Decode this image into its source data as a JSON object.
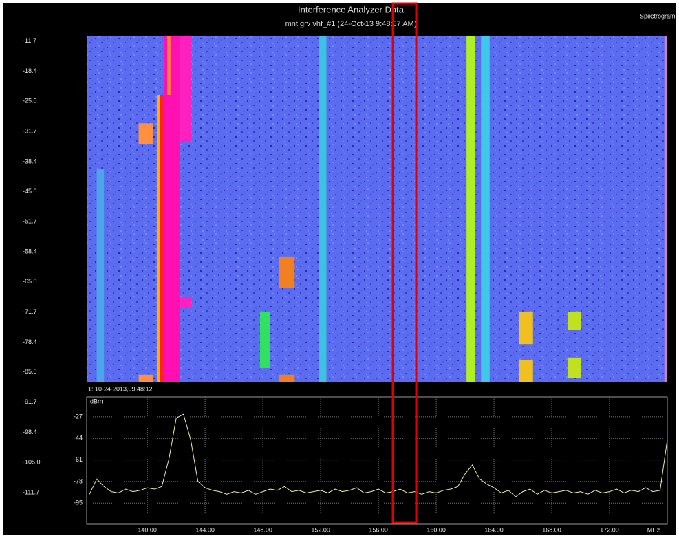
{
  "chart_data": [
    {
      "type": "spectrogram",
      "title": "Interference Analyzer Data",
      "subtitle": "mnt grv vhf_#1 (24-Oct-13 9:48:57 AM)",
      "view_label": "Spectrogram",
      "background": "#5b6cf0",
      "xlim": [
        135.8,
        176
      ],
      "ylim": [
        -118.7,
        -10.5
      ],
      "yticks": [
        -11.7,
        -18.4,
        {
          "value": -25,
          "label": "-25.0"
        },
        -31.7,
        -38.4,
        {
          "value": -45,
          "label": "-45.0"
        },
        -51.7,
        -58.4,
        {
          "value": -65,
          "label": "-65.0"
        },
        -71.7,
        -78.4,
        {
          "value": -85,
          "label": "-85.0"
        },
        -91.7,
        -98.4,
        {
          "value": -105,
          "label": "-105.0"
        },
        -111.7
      ],
      "features": [
        {
          "x": [
            136.5,
            137.0
          ],
          "t": [
            -40,
            -87.3
          ],
          "color": "#4aa6e8"
        },
        {
          "x": [
            151.9,
            152.4
          ],
          "t": [
            -10.5,
            -87.3
          ],
          "color": "#40c0e0"
        },
        {
          "x": [
            163.1,
            163.7
          ],
          "t": [
            -10.5,
            -87.3
          ],
          "color": "#40c8e8"
        },
        {
          "x": [
            162.1,
            162.7
          ],
          "t": [
            -10.5,
            -87.3
          ],
          "color": "#b0f020"
        },
        {
          "x": [
            140.66,
            140.85
          ],
          "t": [
            -23.6,
            -87.3
          ],
          "color": "#ffb000"
        },
        {
          "x": [
            140.85,
            141.13
          ],
          "t": [
            -23.6,
            -87.3
          ],
          "color": "#ff2020"
        },
        {
          "x": [
            141.13,
            142.28
          ],
          "t": [
            -10.5,
            -87.3
          ],
          "color": "#ff10b0"
        },
        {
          "x": [
            141.37,
            141.6
          ],
          "t": [
            -10.5,
            -23.6
          ],
          "color": "#ff8040"
        },
        {
          "x": [
            142.28,
            143.04
          ],
          "t": [
            -10.5,
            -33.9
          ],
          "color": "#ff20c0"
        },
        {
          "x": [
            142.28,
            143.04
          ],
          "t": [
            -68.4,
            -70.8
          ],
          "color": "#ff20c0"
        },
        {
          "x": [
            139.4,
            140.37
          ],
          "t": [
            -29.9,
            -34.5
          ],
          "color": "#ff9040"
        },
        {
          "x": [
            139.4,
            140.37
          ],
          "t": [
            -85.6,
            -87.3
          ],
          "color": "#ff9040"
        },
        {
          "x": [
            149.1,
            150.2
          ],
          "t": [
            -59.4,
            -66.3
          ],
          "color": "#f08020"
        },
        {
          "x": [
            149.1,
            150.2
          ],
          "t": [
            -85.6,
            -87.3
          ],
          "color": "#f08020"
        },
        {
          "x": [
            147.8,
            148.5
          ],
          "t": [
            -71.6,
            -84.1
          ],
          "color": "#30e060"
        },
        {
          "x": [
            165.75,
            166.7
          ],
          "t": [
            -71.6,
            -78.8
          ],
          "color": "#f0c020"
        },
        {
          "x": [
            165.75,
            166.7
          ],
          "t": [
            -82.4,
            -87.3
          ],
          "color": "#f0c020"
        },
        {
          "x": [
            169.1,
            170.0
          ],
          "t": [
            -71.6,
            -75.7
          ],
          "color": "#c0e020"
        },
        {
          "x": [
            169.1,
            170.0
          ],
          "t": [
            -81.8,
            -86.4
          ],
          "color": "#c0e020"
        },
        {
          "x": [
            175.8,
            176.0
          ],
          "t": [
            -10.5,
            -87.3
          ],
          "color": "#d080c0"
        }
      ]
    },
    {
      "type": "line",
      "timestamp": "1: 10-24-2013,09:48:12",
      "y_label": "dBm",
      "x_label": "MHz",
      "color": "#f0f0a8",
      "grid": true,
      "xlim": [
        135.8,
        176
      ],
      "ylim": [
        -111.7,
        -11.3
      ],
      "xticks": [
        {
          "value": 140,
          "label": "140.00"
        },
        {
          "value": 144,
          "label": "144.00"
        },
        {
          "value": 148,
          "label": "148.00"
        },
        {
          "value": 152,
          "label": "152.00"
        },
        {
          "value": 156,
          "label": "156.00"
        },
        {
          "value": 160,
          "label": "160.00"
        },
        {
          "value": 164,
          "label": "164.00"
        },
        {
          "value": 168,
          "label": "168.00"
        },
        {
          "value": 172,
          "label": "172.00"
        }
      ],
      "yticks": [
        -27,
        -44,
        -61,
        -78,
        -95
      ],
      "x": [
        136,
        136.5,
        137,
        137.5,
        138,
        138.5,
        139,
        139.5,
        140,
        140.5,
        141,
        141.5,
        142,
        142.5,
        143,
        143.5,
        144,
        144.5,
        145,
        145.5,
        146,
        146.5,
        147,
        147.5,
        148,
        148.5,
        149,
        149.5,
        150,
        150.5,
        151,
        151.5,
        152,
        152.5,
        153,
        153.5,
        154,
        154.5,
        155,
        155.5,
        156,
        156.5,
        157,
        157.5,
        158,
        158.5,
        159,
        159.5,
        160,
        160.5,
        161,
        161.5,
        162,
        162.5,
        163,
        163.5,
        164,
        164.5,
        165,
        165.5,
        166,
        166.5,
        167,
        167.5,
        168,
        168.5,
        169,
        169.5,
        170,
        170.5,
        171,
        171.5,
        172,
        172.5,
        173,
        173.5,
        174,
        174.5,
        175,
        175.5,
        176
      ],
      "values": [
        -88,
        -76,
        -82,
        -86,
        -87,
        -84,
        -86,
        -85,
        -83,
        -84,
        -82,
        -60,
        -28,
        -25,
        -45,
        -78,
        -83,
        -85,
        -86,
        -88,
        -86,
        -87,
        -85,
        -88,
        -86,
        -84,
        -85,
        -82,
        -86,
        -85,
        -87,
        -86,
        -85,
        -87,
        -84,
        -86,
        -85,
        -83,
        -87,
        -86,
        -84,
        -87,
        -86,
        -84,
        -87,
        -86,
        -88,
        -86,
        -87,
        -85,
        -84,
        -82,
        -72,
        -65,
        -76,
        -80,
        -83,
        -87,
        -85,
        -90,
        -86,
        -84,
        -88,
        -85,
        -87,
        -86,
        -85,
        -87,
        -86,
        -88,
        -85,
        -87,
        -86,
        -84,
        -87,
        -85,
        -86,
        -83,
        -86,
        -85,
        -45
      ]
    }
  ]
}
